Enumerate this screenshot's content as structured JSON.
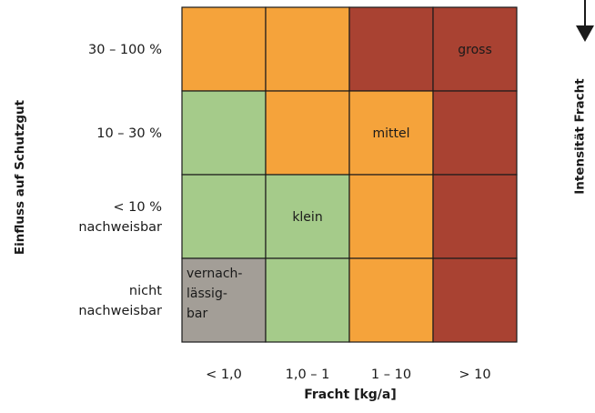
{
  "chart_data": {
    "type": "heatmap",
    "xlabel": "Fracht [kg/a]",
    "ylabel": "Einfluss auf Schutzgut",
    "right_label": "Intensität Fracht",
    "x_categories": [
      "< 1,0",
      "1,0 – 1",
      "1 – 10",
      "> 10"
    ],
    "y_categories": [
      [
        "30 – 100 %"
      ],
      [
        "10 – 30 %"
      ],
      [
        "< 10 %",
        "nachweisbar"
      ],
      [
        "nicht",
        "nachweisbar"
      ]
    ],
    "levels": {
      "vernachlaessigbar": "#a39e97",
      "klein": "#a5cb8a",
      "mittel": "#f5a33b",
      "gross": "#a94232"
    },
    "cells": [
      [
        "mittel",
        "mittel",
        "gross",
        "gross"
      ],
      [
        "klein",
        "mittel",
        "mittel",
        "gross"
      ],
      [
        "klein",
        "klein",
        "mittel",
        "gross"
      ],
      [
        "vernachlaessigbar",
        "klein",
        "mittel",
        "gross"
      ]
    ],
    "cell_labels": [
      {
        "row": 0,
        "col": 3,
        "lines": [
          "gross"
        ]
      },
      {
        "row": 1,
        "col": 2,
        "lines": [
          "mittel"
        ]
      },
      {
        "row": 2,
        "col": 1,
        "lines": [
          "klein"
        ]
      },
      {
        "row": 3,
        "col": 0,
        "lines": [
          "vernach-",
          "lässig-",
          "bar"
        ]
      }
    ]
  }
}
